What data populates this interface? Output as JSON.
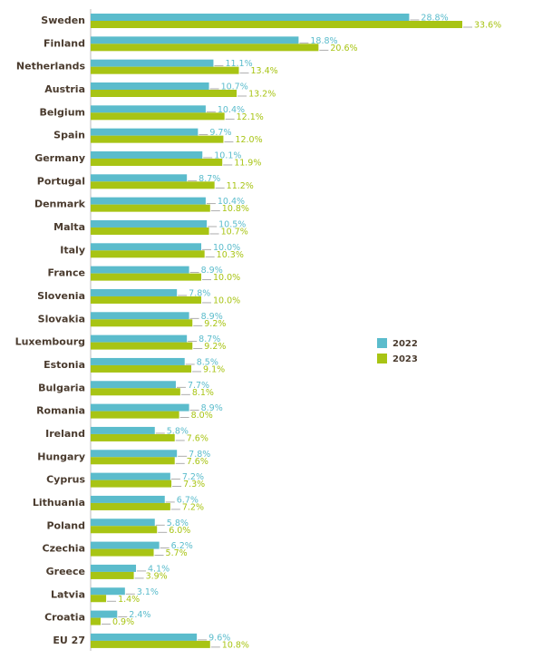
{
  "chart_data": {
    "type": "bar",
    "orientation": "horizontal",
    "categories": [
      "Sweden",
      "Finland",
      "Netherlands",
      "Austria",
      "Belgium",
      "Spain",
      "Germany",
      "Portugal",
      "Denmark",
      "Malta",
      "Italy",
      "France",
      "Slovenia",
      "Slovakia",
      "Luxembourg",
      "Estonia",
      "Bulgaria",
      "Romania",
      "Ireland",
      "Hungary",
      "Cyprus",
      "Lithuania",
      "Poland",
      "Czechia",
      "Greece",
      "Latvia",
      "Croatia",
      "EU 27"
    ],
    "series": [
      {
        "name": "2022",
        "color": "#5bbccc",
        "values": [
          28.8,
          18.8,
          11.1,
          10.7,
          10.4,
          9.7,
          10.1,
          8.7,
          10.4,
          10.5,
          10.0,
          8.9,
          7.8,
          8.9,
          8.7,
          8.5,
          7.7,
          8.9,
          5.8,
          7.8,
          7.2,
          6.7,
          5.8,
          6.2,
          4.1,
          3.1,
          2.4,
          9.6
        ],
        "value_labels": [
          "28.8%",
          "18.8%",
          "11.1%",
          "10.7%",
          "10.4%",
          "9.7%",
          "10.1%",
          "8.7%",
          "10.4%",
          "10.5%",
          "10.0%",
          "8.9%",
          "7.8%",
          "8.9%",
          "8.7%",
          "8.5%",
          "7.7%",
          "8.9%",
          "5.8%",
          "7.8%",
          "7.2%",
          "6.7%",
          "5.8%",
          "6.2%",
          "4.1%",
          "3.1%",
          "2.4%",
          "9.6%"
        ]
      },
      {
        "name": "2023",
        "color": "#a8c414",
        "values": [
          33.6,
          20.6,
          13.4,
          13.2,
          12.1,
          12.0,
          11.9,
          11.2,
          10.8,
          10.7,
          10.3,
          10.0,
          10.0,
          9.2,
          9.2,
          9.1,
          8.1,
          8.0,
          7.6,
          7.6,
          7.3,
          7.2,
          6.0,
          5.7,
          3.9,
          1.4,
          0.9,
          10.8
        ],
        "value_labels": [
          "33.6%",
          "20.6%",
          "13.4%",
          "13.2%",
          "12.1%",
          "12.0%",
          "11.9%",
          "11.2%",
          "10.8%",
          "10.7%",
          "10.3%",
          "10.0%",
          "10.0%",
          "9.2%",
          "9.2%",
          "9.1%",
          "8.1%",
          "8.0%",
          "7.6%",
          "7.6%",
          "7.3%",
          "7.2%",
          "6.0%",
          "5.7%",
          "3.9%",
          "1.4%",
          "0.9%",
          "10.8%"
        ]
      }
    ],
    "legend": "right"
  }
}
